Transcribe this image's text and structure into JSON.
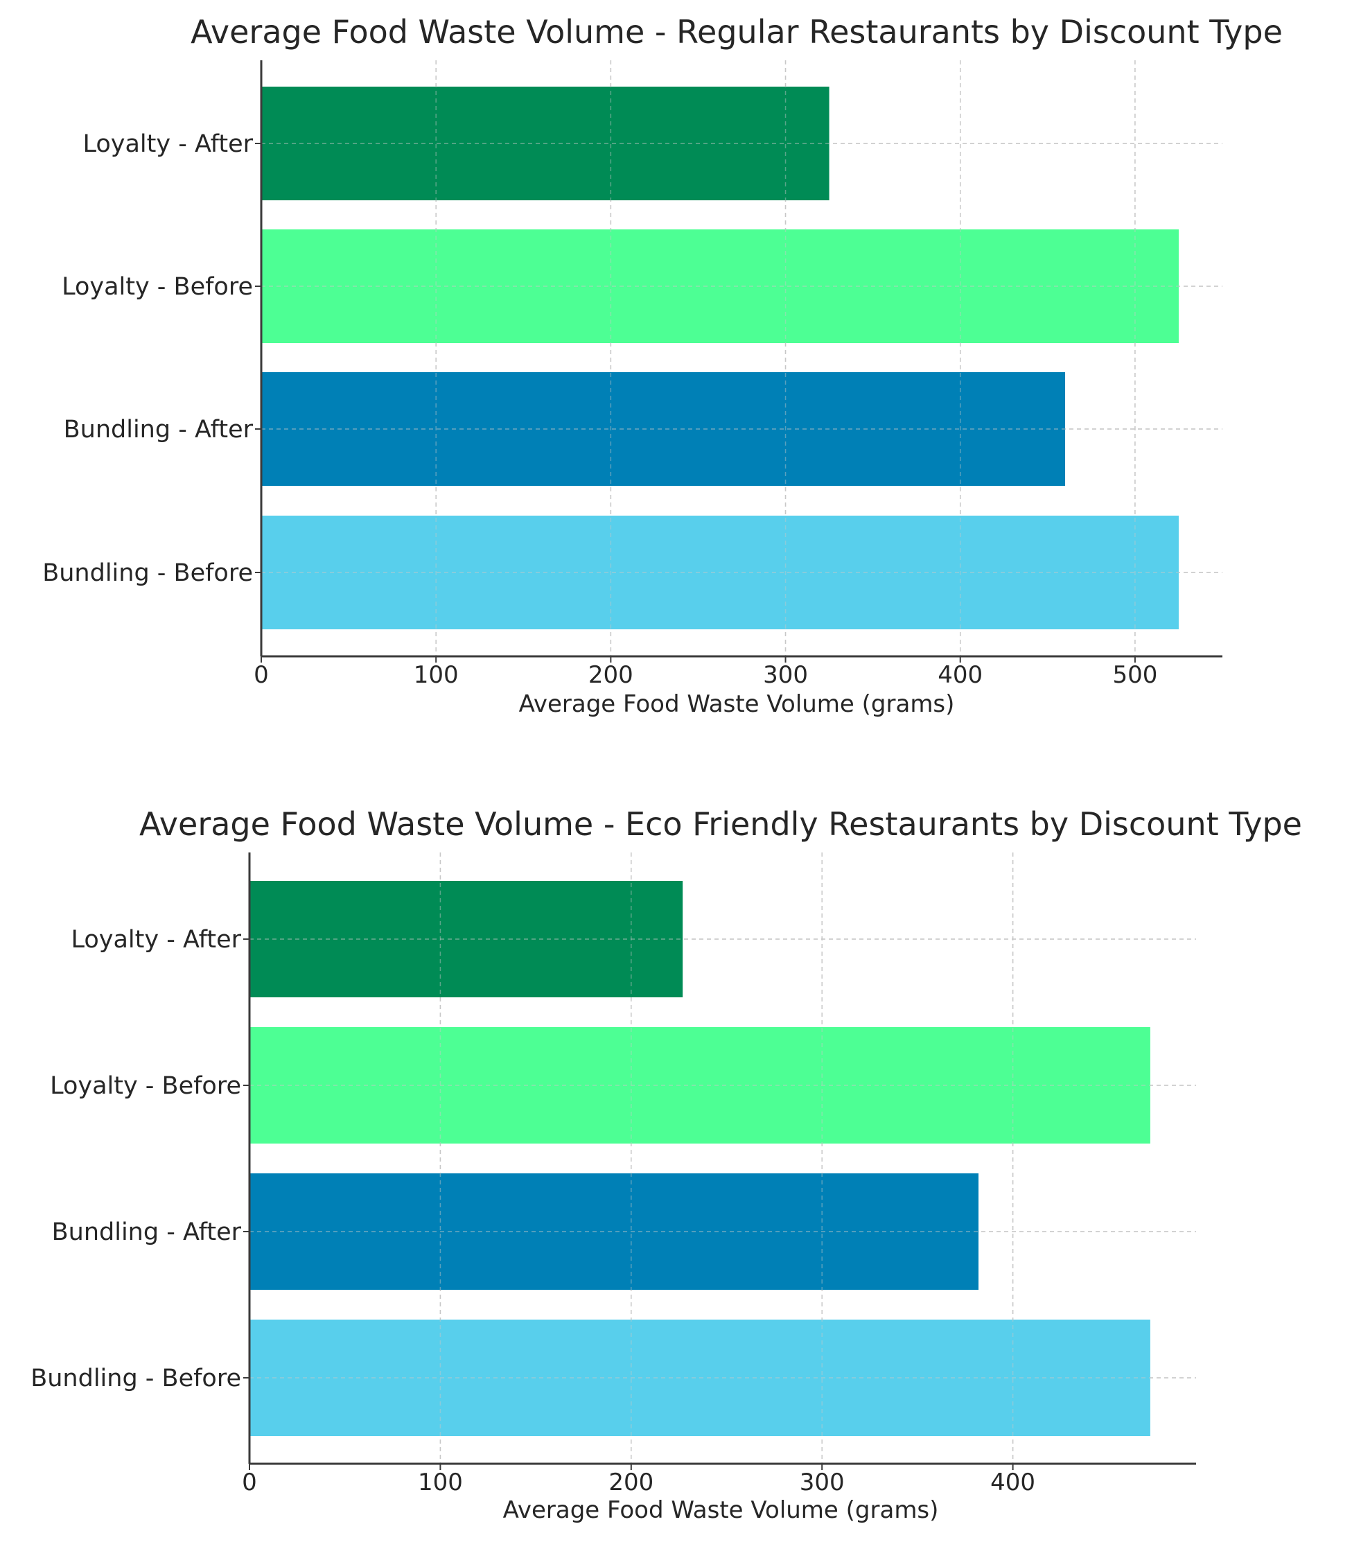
{
  "chart_data": [
    {
      "type": "bar",
      "orientation": "horizontal",
      "title": "Average Food Waste Volume - Regular Restaurants by Discount Type",
      "xlabel": "Average Food Waste Volume (grams)",
      "ylabel": "",
      "categories": [
        "Loyalty - After",
        "Loyalty - Before",
        "Bundling - After",
        "Bundling - Before"
      ],
      "values": [
        325,
        525,
        460,
        525
      ],
      "colors": [
        "#008b55",
        "#4dff94",
        "#0080b6",
        "#58cfec"
      ],
      "xlim": [
        0,
        550
      ],
      "xticks": [
        0,
        100,
        200,
        300,
        400,
        500
      ],
      "grid": true,
      "legend": "none"
    },
    {
      "type": "bar",
      "orientation": "horizontal",
      "title": "Average Food Waste Volume - Eco Friendly Restaurants by Discount Type",
      "xlabel": "Average Food Waste Volume (grams)",
      "ylabel": "",
      "categories": [
        "Loyalty - After",
        "Loyalty - Before",
        "Bundling - After",
        "Bundling - Before"
      ],
      "values": [
        227,
        472,
        382,
        472
      ],
      "colors": [
        "#008b55",
        "#4dff94",
        "#0080b6",
        "#58cfec"
      ],
      "xlim": [
        0,
        496
      ],
      "xticks": [
        0,
        100,
        200,
        300,
        400
      ],
      "grid": true,
      "legend": "none"
    }
  ]
}
